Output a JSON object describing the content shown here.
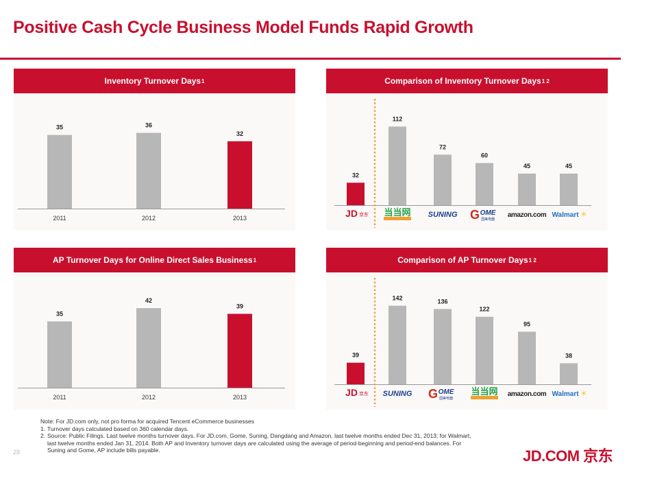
{
  "page": {
    "title": "Positive Cash Cycle Business Model Funds Rapid Growth",
    "page_number": "28",
    "brand": "JD.COM 京东",
    "notes": {
      "note": "Note: For JD.com only, not pro forma for acquired Tencent eCommerce businesses",
      "items": [
        {
          "num": "1.",
          "text": "Turnover days calculated based on 360 calendar days."
        },
        {
          "num": "2.",
          "text": "Source: Public Filings. Last twelve months turnover days. For JD.com, Gome, Suning, Dangdang and Amazon, last twelve months ended Dec 31, 2013; for Walmart, last twelve months ended Jan 31, 2014. Both AP and Inventory turnover days are calculated using the average of period-beginning and period-end balances. For Suning and Gome, AP include bills payable."
        }
      ]
    }
  },
  "colors": {
    "accent": "#c8102e",
    "bar_gray": "#b7b7b7",
    "divider": "#e8a33c"
  },
  "chart_data": [
    {
      "type": "bar",
      "title": "Inventory Turnover Days",
      "title_sup": "1",
      "categories": [
        "2011",
        "2012",
        "2013"
      ],
      "values": [
        35,
        36,
        32
      ],
      "highlight": [
        false,
        false,
        true
      ],
      "xlabel": "",
      "ylabel": "",
      "ylim": [
        0,
        45
      ],
      "grid": false,
      "legend": "none",
      "data_labels": true
    },
    {
      "type": "bar",
      "title": "Comparison of Inventory Turnover Days",
      "title_sup": "1 2",
      "categories": [
        "JD.com",
        "Dangdang",
        "Suning",
        "Gome",
        "Amazon.com",
        "Walmart"
      ],
      "logos": [
        "jd",
        "dangdang",
        "suning",
        "gome",
        "amazon",
        "walmart"
      ],
      "values": [
        32,
        112,
        72,
        60,
        45,
        45
      ],
      "highlight": [
        true,
        false,
        false,
        false,
        false,
        false
      ],
      "xlabel": "",
      "ylabel": "",
      "ylim": [
        0,
        130
      ],
      "grid": false,
      "legend": "none",
      "data_labels": true,
      "divider_after_index": 0
    },
    {
      "type": "bar",
      "title": "AP Turnover Days for Online Direct Sales Business",
      "title_sup": "1",
      "categories": [
        "2011",
        "2012",
        "2013"
      ],
      "values": [
        35,
        42,
        39
      ],
      "highlight": [
        false,
        false,
        true
      ],
      "xlabel": "",
      "ylabel": "",
      "ylim": [
        0,
        50
      ],
      "grid": false,
      "legend": "none",
      "data_labels": true
    },
    {
      "type": "bar",
      "title": "Comparison of AP Turnover Days",
      "title_sup": "1 2",
      "categories": [
        "JD.com",
        "Suning",
        "Gome",
        "Dangdang",
        "Amazon.com",
        "Walmart"
      ],
      "logos": [
        "jd",
        "suning",
        "gome",
        "dangdang",
        "amazon",
        "walmart"
      ],
      "values": [
        39,
        142,
        136,
        122,
        95,
        38
      ],
      "highlight": [
        true,
        false,
        false,
        false,
        false,
        false
      ],
      "xlabel": "",
      "ylabel": "",
      "ylim": [
        0,
        165
      ],
      "grid": false,
      "legend": "none",
      "data_labels": true,
      "divider_after_index": 0
    }
  ],
  "logo_text": {
    "jd": {
      "main": "JD",
      "sub": "京东"
    },
    "dangdang": {
      "main": "当当网",
      "sub": "dangdang.com"
    },
    "suning": {
      "main": "SUNING"
    },
    "gome": {
      "main": "GOME",
      "sub": "国美电器"
    },
    "amazon": {
      "main": "amazon.com"
    },
    "walmart": {
      "main": "Walmart"
    }
  }
}
